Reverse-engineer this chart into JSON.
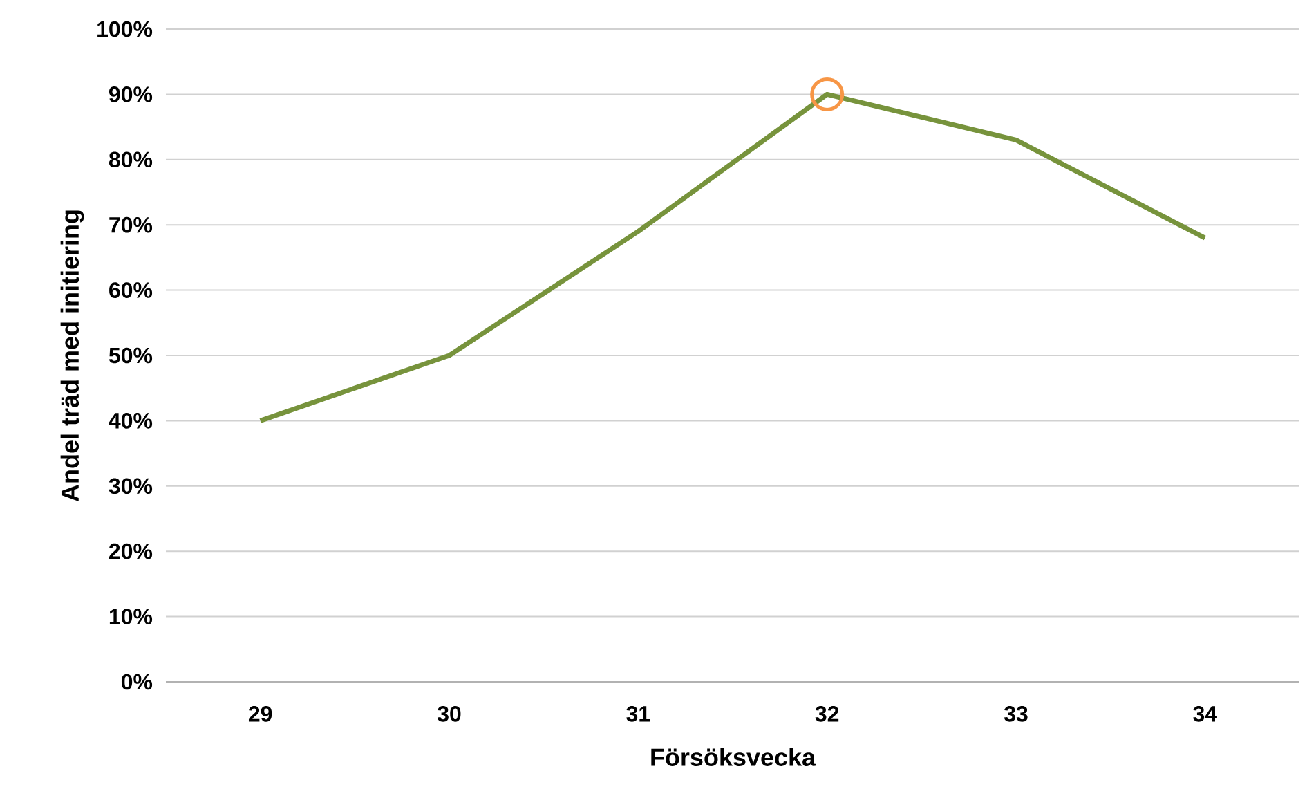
{
  "chart_data": {
    "type": "line",
    "xlabel": "Försöksvecka",
    "ylabel": "Andel träd med initiering",
    "categories": [
      "29",
      "30",
      "31",
      "32",
      "33",
      "34"
    ],
    "series": [
      {
        "color": "#77933c",
        "values": [
          40,
          50,
          69,
          90,
          83,
          68
        ]
      },
      {
        "type": "scatter",
        "marker": "circle",
        "color": "#f79646",
        "values": [
          null,
          null,
          null,
          90,
          null,
          null
        ]
      }
    ],
    "ylim": [
      0,
      100
    ],
    "yticks": [
      {
        "value": 0,
        "label": "0%"
      },
      {
        "value": 10,
        "label": "10%"
      },
      {
        "value": 20,
        "label": "20%"
      },
      {
        "value": 30,
        "label": "30%"
      },
      {
        "value": 40,
        "label": "40%"
      },
      {
        "value": 50,
        "label": "50%"
      },
      {
        "value": 60,
        "label": "60%"
      },
      {
        "value": 70,
        "label": "70%"
      },
      {
        "value": 80,
        "label": "80%"
      },
      {
        "value": 90,
        "label": "90%"
      },
      {
        "value": 100,
        "label": "100%"
      }
    ],
    "grid": "y"
  }
}
